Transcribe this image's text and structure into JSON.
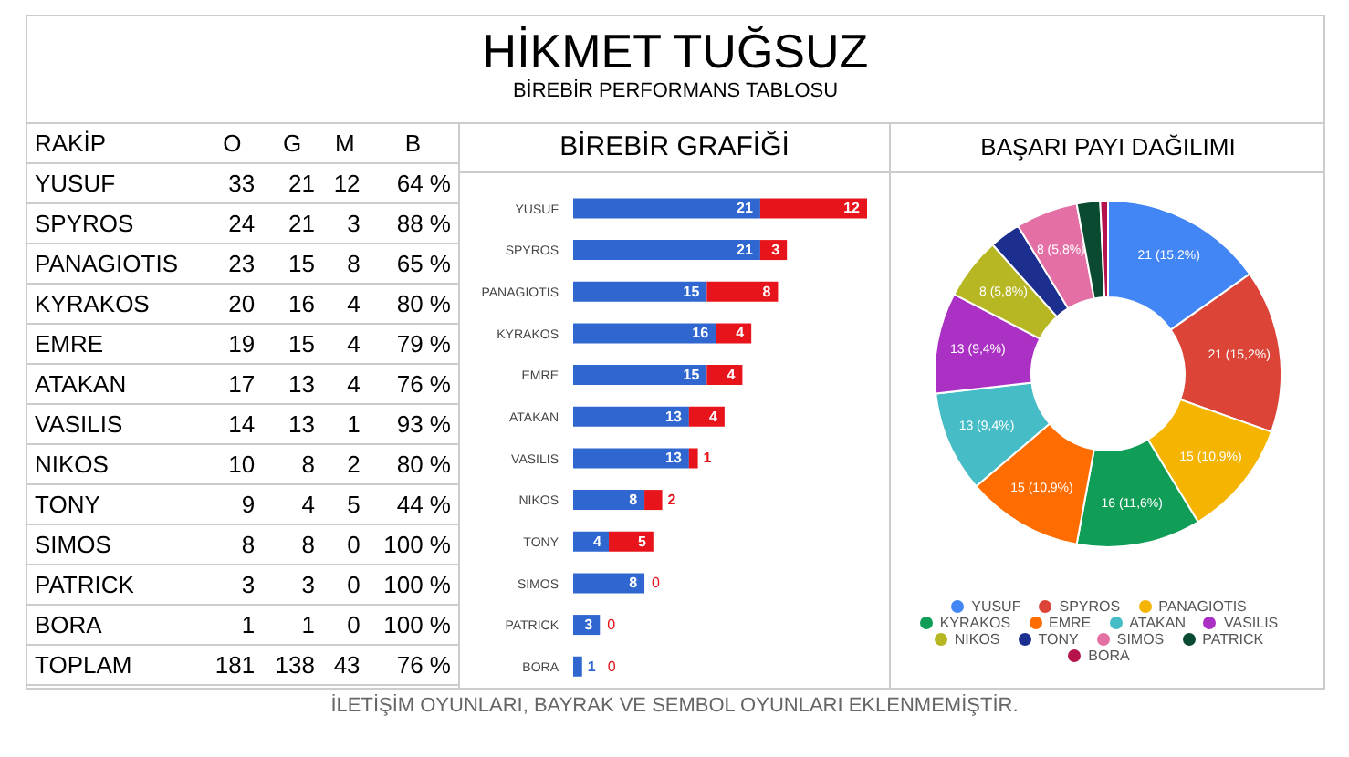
{
  "chart_data": [
    {
      "type": "other",
      "title": "HİKMET TUĞSUZ",
      "subtitle": "BİREBİR PERFORMANS TABLOSU",
      "categories": [
        "RAKİP",
        "O",
        "G",
        "M",
        "B"
      ],
      "y_categories": [
        "YUSUF",
        "SPYROS",
        "PANAGIOTIS",
        "KYRAKOS",
        "EMRE",
        "ATAKAN",
        "VASILIS",
        "NIKOS",
        "TONY",
        "SIMOS",
        "PATRICK",
        "BORA",
        "TOPLAM"
      ],
      "cell_labels": [
        [
          "33",
          "21",
          "12",
          "64 %"
        ],
        [
          "24",
          "21",
          "3",
          "88 %"
        ],
        [
          "23",
          "15",
          "8",
          "65 %"
        ],
        [
          "20",
          "16",
          "4",
          "80 %"
        ],
        [
          "19",
          "15",
          "4",
          "79 %"
        ],
        [
          "17",
          "13",
          "4",
          "76 %"
        ],
        [
          "14",
          "13",
          "1",
          "93 %"
        ],
        [
          "10",
          "8",
          "2",
          "80 %"
        ],
        [
          "9",
          "4",
          "5",
          "44 %"
        ],
        [
          "8",
          "8",
          "0",
          "100 %"
        ],
        [
          "3",
          "3",
          "0",
          "100 %"
        ],
        [
          "1",
          "1",
          "0",
          "100 %"
        ],
        [
          "181",
          "138",
          "43",
          "76 %"
        ]
      ],
      "annotations": [
        "İLETİŞİM OYUNLARI, BAYRAK VE SEMBOL OYUNLARI EKLENMEMİŞTİR."
      ]
    },
    {
      "type": "bar",
      "title": "BİREBİR GRAFİĞİ",
      "orientation": "horizontal",
      "stacked": true,
      "data_labels": true,
      "categories": [
        "YUSUF",
        "SPYROS",
        "PANAGIOTIS",
        "KYRAKOS",
        "EMRE",
        "ATAKAN",
        "VASILIS",
        "NIKOS",
        "TONY",
        "SIMOS",
        "PATRICK",
        "BORA"
      ],
      "series": [
        {
          "color": "#2f66d0",
          "values": [
            21,
            21,
            15,
            16,
            15,
            13,
            13,
            8,
            4,
            8,
            3,
            1
          ]
        },
        {
          "color": "#e8141c",
          "values": [
            12,
            3,
            8,
            4,
            4,
            4,
            1,
            2,
            5,
            0,
            0,
            0
          ]
        }
      ]
    },
    {
      "type": "donut",
      "title": "BAŞARI PAYI DAĞILIMI",
      "legend": "bottom",
      "categories": [
        "YUSUF",
        "SPYROS",
        "PANAGIOTIS",
        "KYRAKOS",
        "EMRE",
        "ATAKAN",
        "VASILIS",
        "NIKOS",
        "TONY",
        "SIMOS",
        "PATRICK",
        "BORA"
      ],
      "values": [
        21,
        21,
        15,
        16,
        15,
        13,
        13,
        8,
        4,
        8,
        3,
        1
      ],
      "colors": [
        "#4285f4",
        "#db4437",
        "#f4b400",
        "#0f9d58",
        "#ff6d01",
        "#46bdc6",
        "#ab30c4",
        "#b7b623",
        "#1c2f8f",
        "#e46fa4",
        "#0a4a30",
        "#b5134b"
      ],
      "value_labels": [
        "21 (15,2%)",
        "21 (15,2%)",
        "15 (10,9%)",
        "16 (11,6%)",
        "15 (10,9%)",
        "13 (9,4%)",
        "13 (9,4%)",
        "8 (5,8%)",
        null,
        "8 (5,8%)",
        null,
        null
      ]
    }
  ]
}
